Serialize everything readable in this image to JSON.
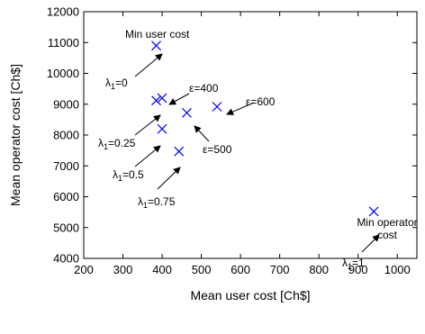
{
  "chart_data": {
    "type": "scatter",
    "title": "",
    "xlabel": "Mean user cost [Ch$]",
    "ylabel": "Mean operator cost [Ch$]",
    "xlim": [
      200,
      1050
    ],
    "ylim": [
      4000,
      12000
    ],
    "x_ticks": [
      "200",
      "300",
      "400",
      "500",
      "600",
      "700",
      "800",
      "900",
      "1000"
    ],
    "y_ticks": [
      "4000",
      "5000",
      "6000",
      "7000",
      "8000",
      "9000",
      "10000",
      "11000",
      "12000"
    ],
    "grid": false,
    "marker": "x",
    "marker_color": "#0000ff",
    "points": [
      {
        "x": 385,
        "y": 10900
      },
      {
        "x": 385,
        "y": 9120
      },
      {
        "x": 400,
        "y": 9200
      },
      {
        "x": 400,
        "y": 8200
      },
      {
        "x": 443,
        "y": 7470
      },
      {
        "x": 463,
        "y": 8720
      },
      {
        "x": 540,
        "y": 8920
      },
      {
        "x": 940,
        "y": 5520
      }
    ],
    "annotations": {
      "min_user_cost": "Min user cost",
      "lambda0_base": "λ",
      "lambda0_sub": "1",
      "lambda0_val": "=0",
      "lambda025_base": "λ",
      "lambda025_sub": "1",
      "lambda025_val": "=0.25",
      "lambda05_base": "λ",
      "lambda05_sub": "1",
      "lambda05_val": "=0.5",
      "lambda075_base": "λ",
      "lambda075_sub": "1",
      "lambda075_val": "=0.75",
      "lambda1_base": "λ",
      "lambda1_sub": "1",
      "lambda1_val": "=1",
      "eps400": "ε=400",
      "eps500": "ε=500",
      "eps600": "ε=600",
      "min_operator_line1": "Min operator",
      "min_operator_line2": "cost"
    }
  }
}
